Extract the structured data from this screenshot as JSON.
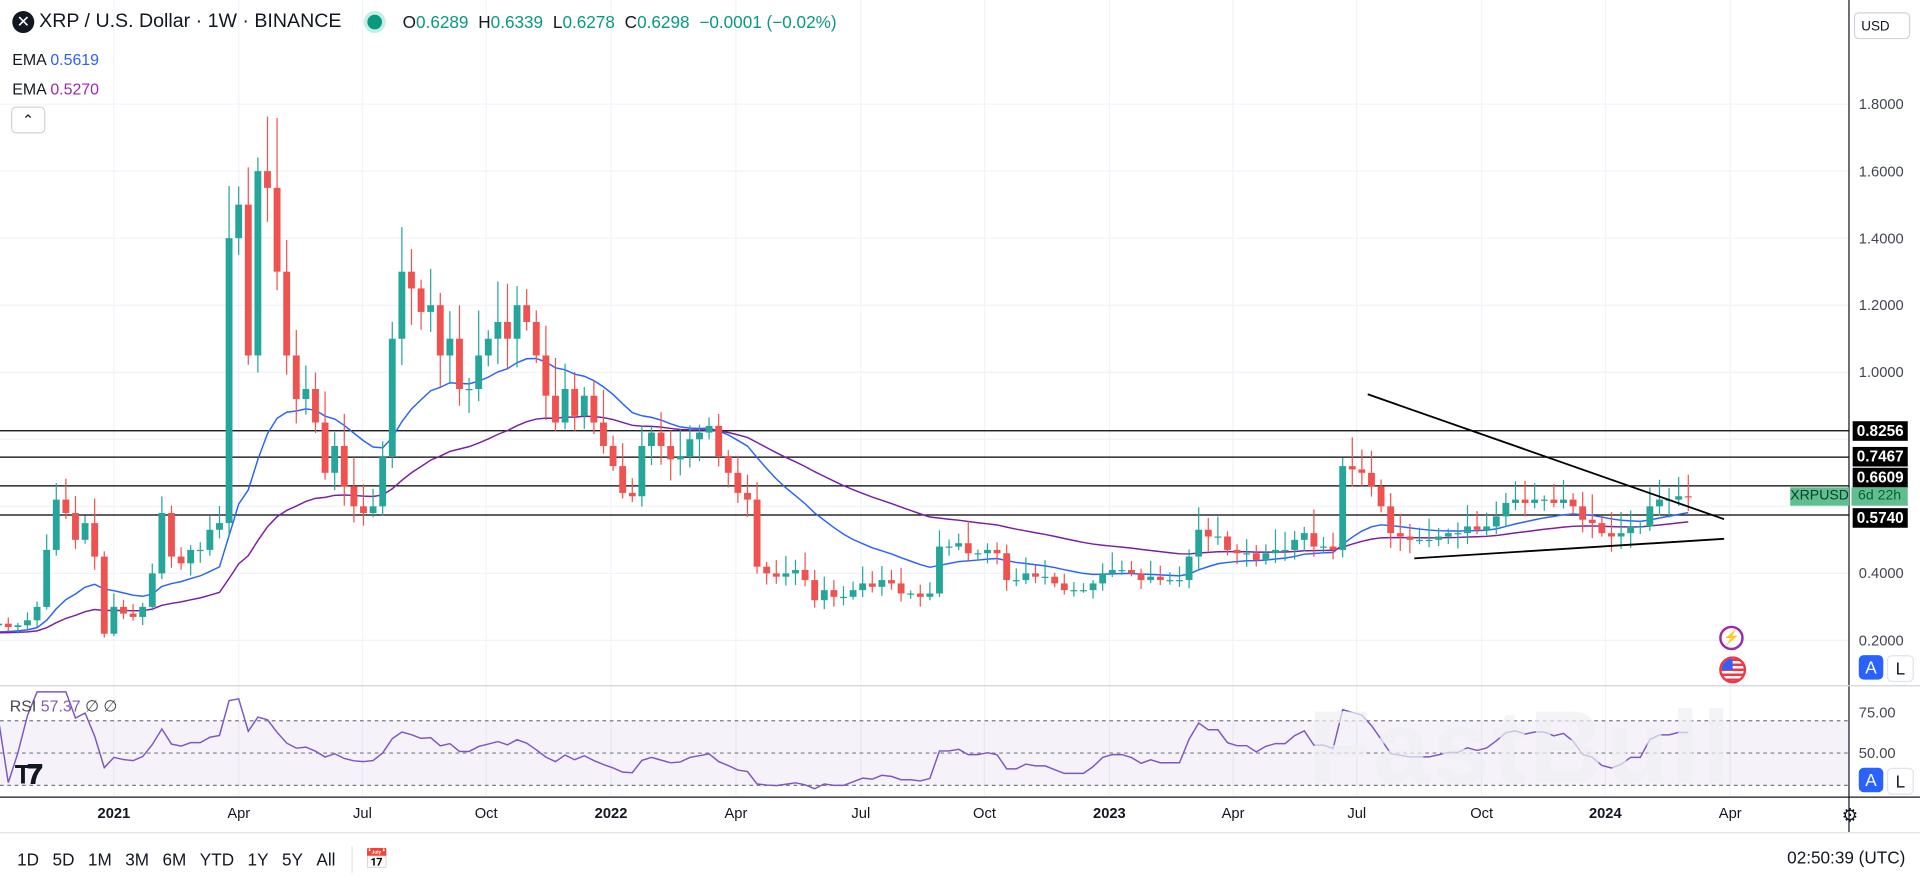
{
  "header": {
    "symbol_icon": "xrp-logo",
    "title": "XRP / U.S. Dollar · 1W · BINANCE",
    "status_color": "#089981",
    "ohlc": {
      "o_label": "O",
      "o": "0.6289",
      "h_label": "H",
      "h": "0.6339",
      "l_label": "L",
      "l": "0.6278",
      "c_label": "C",
      "c": "0.6298",
      "change": "−0.0001 (−0.02%)"
    }
  },
  "indicators": [
    {
      "label": "EMA",
      "value": "0.5619",
      "color": "#2962ff"
    },
    {
      "label": "EMA",
      "value": "0.5270",
      "color": "#9c27b0"
    }
  ],
  "collapse_icon": "chevron-up-icon",
  "currency": "USD",
  "price_axis": [
    "1.8000",
    "1.6000",
    "1.4000",
    "1.2000",
    "1.0000",
    "0.4000",
    "0.2000"
  ],
  "levels": [
    "0.8256",
    "0.7467",
    "0.6609",
    "0.5740"
  ],
  "symbol_tag": {
    "name": "XRPUSD",
    "countdown": "6d 22h"
  },
  "rsi": {
    "label": "RSI",
    "value": "57.37",
    "extra1": "∅",
    "extra2": "∅",
    "axis": [
      "75.00",
      "50.00"
    ]
  },
  "time_axis": [
    "2021",
    "Apr",
    "Jul",
    "Oct",
    "2022",
    "Apr",
    "Jul",
    "Oct",
    "2023",
    "Apr",
    "Jul",
    "Oct",
    "2024",
    "Apr"
  ],
  "scale_buttons": {
    "auto": "A",
    "log": "L"
  },
  "range_buttons": [
    "1D",
    "5D",
    "1M",
    "3M",
    "6M",
    "YTD",
    "1Y",
    "5Y",
    "All"
  ],
  "clock": "02:50:39 (UTC)",
  "watermark": "FastBull",
  "colors": {
    "up": "#26a69a",
    "down": "#ef5350",
    "ema_fast": "#2962ff",
    "ema_slow": "#7b1fa2",
    "rsi": "#7e57c2"
  },
  "chart_data": {
    "type": "candlestick",
    "interval": "1W",
    "first_week": "2020-10-05",
    "ylim": [
      0.2,
      1.9
    ],
    "closes": [
      0.245,
      0.25,
      0.24,
      0.245,
      0.26,
      0.3,
      0.47,
      0.62,
      0.58,
      0.5,
      0.55,
      0.45,
      0.22,
      0.3,
      0.28,
      0.27,
      0.3,
      0.4,
      0.58,
      0.45,
      0.43,
      0.47,
      0.47,
      0.53,
      0.55,
      1.4,
      1.5,
      1.05,
      1.6,
      1.55,
      1.3,
      1.05,
      0.92,
      0.95,
      0.85,
      0.7,
      0.78,
      0.66,
      0.6,
      0.58,
      0.6,
      0.75,
      1.1,
      1.3,
      1.25,
      1.18,
      1.2,
      1.05,
      1.1,
      0.95,
      0.95,
      1.05,
      1.1,
      1.15,
      1.1,
      1.2,
      1.15,
      1.05,
      0.93,
      0.85,
      0.95,
      0.87,
      0.93,
      0.85,
      0.78,
      0.72,
      0.64,
      0.63,
      0.78,
      0.82,
      0.78,
      0.74,
      0.75,
      0.8,
      0.82,
      0.84,
      0.75,
      0.7,
      0.64,
      0.62,
      0.42,
      0.4,
      0.39,
      0.4,
      0.41,
      0.38,
      0.32,
      0.35,
      0.33,
      0.33,
      0.35,
      0.37,
      0.36,
      0.38,
      0.37,
      0.34,
      0.34,
      0.33,
      0.34,
      0.48,
      0.48,
      0.49,
      0.46,
      0.46,
      0.47,
      0.46,
      0.38,
      0.38,
      0.4,
      0.39,
      0.39,
      0.37,
      0.35,
      0.35,
      0.35,
      0.37,
      0.4,
      0.41,
      0.41,
      0.4,
      0.38,
      0.39,
      0.38,
      0.38,
      0.38,
      0.45,
      0.53,
      0.51,
      0.51,
      0.47,
      0.46,
      0.46,
      0.44,
      0.46,
      0.47,
      0.47,
      0.5,
      0.52,
      0.48,
      0.48,
      0.47,
      0.72,
      0.71,
      0.7,
      0.66,
      0.6,
      0.52,
      0.51,
      0.5,
      0.5,
      0.5,
      0.51,
      0.52,
      0.52,
      0.54,
      0.53,
      0.54,
      0.57,
      0.61,
      0.62,
      0.61,
      0.62,
      0.62,
      0.61,
      0.62,
      0.6,
      0.56,
      0.55,
      0.52,
      0.51,
      0.52,
      0.54,
      0.54,
      0.6,
      0.62,
      0.62,
      0.63,
      0.6298
    ],
    "horizontal_levels": [
      0.8256,
      0.7467,
      0.6609,
      0.574
    ],
    "trendlines": [
      {
        "from": [
          "2023-07-10",
          0.94
        ],
        "to": [
          "2024-03-25",
          0.57
        ]
      },
      {
        "from": [
          "2023-08-21",
          0.44
        ],
        "to": [
          "2024-03-25",
          0.5
        ]
      }
    ],
    "rsi_bands": [
      70,
      50,
      30
    ]
  }
}
